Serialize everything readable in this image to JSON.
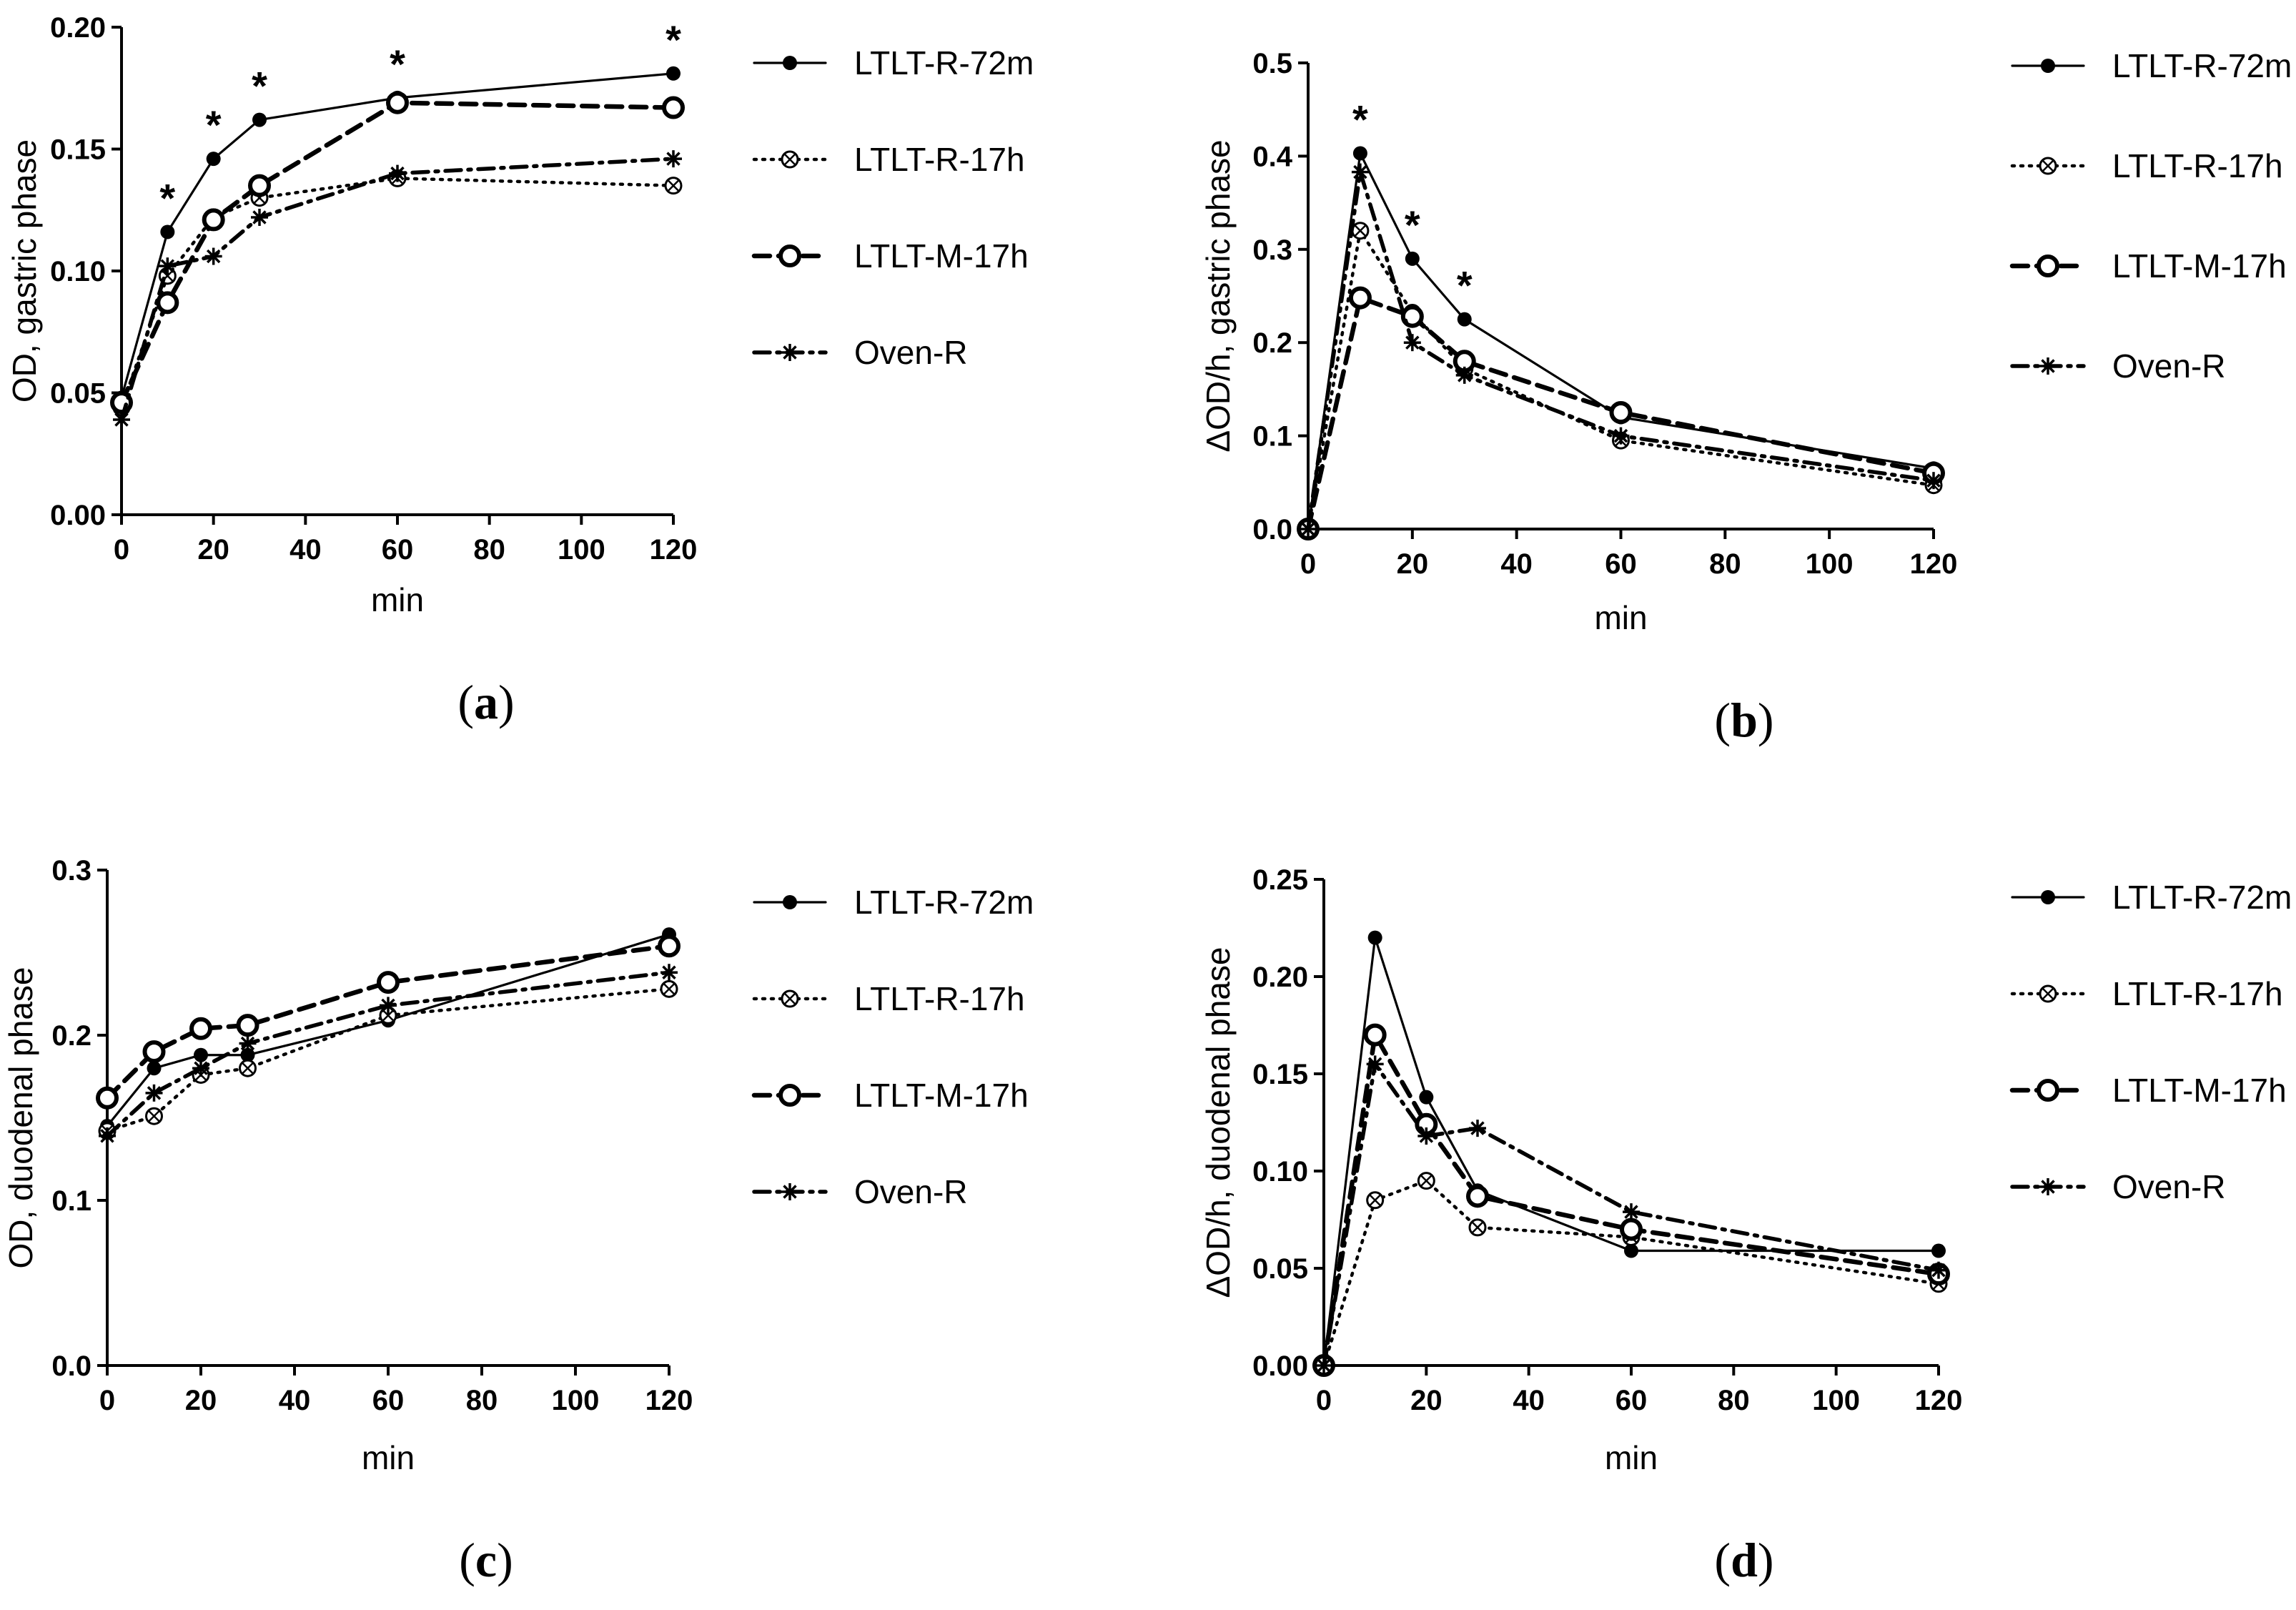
{
  "markers": {
    "LTLT-R-72m": "filled-circle",
    "LTLT-R-17h": "crossed-circle",
    "LTLT-M-17h": "open-circle",
    "Oven-R": "asterisk"
  },
  "chart_data": [
    {
      "panel": "a",
      "panel_label": "a",
      "type": "line",
      "xlabel": "min",
      "ylabel": "OD, gastric phase",
      "xlim": [
        0,
        120
      ],
      "ylim": [
        0,
        0.2
      ],
      "xticks": [
        0,
        20,
        40,
        60,
        80,
        100,
        120
      ],
      "yticks": [
        0,
        0.05,
        0.1,
        0.15,
        0.2
      ],
      "ytick_labels": [
        "0.00",
        "0.05",
        "0.10",
        "0.15",
        "0.20"
      ],
      "x": [
        0,
        10,
        20,
        30,
        60,
        120
      ],
      "series": [
        {
          "name": "LTLT-R-72m",
          "values": [
            0.048,
            0.116,
            0.146,
            0.162,
            0.171,
            0.181
          ]
        },
        {
          "name": "LTLT-R-17h",
          "values": [
            0.044,
            0.098,
            0.122,
            0.13,
            0.138,
            0.135
          ]
        },
        {
          "name": "LTLT-M-17h",
          "values": [
            0.046,
            0.087,
            0.121,
            0.135,
            0.169,
            0.167
          ]
        },
        {
          "name": "Oven-R",
          "values": [
            0.039,
            0.102,
            0.106,
            0.122,
            0.14,
            0.146
          ]
        }
      ],
      "significance": [
        {
          "x": 10,
          "y": 0.116,
          "text": "*"
        },
        {
          "x": 20,
          "y": 0.146,
          "text": "*"
        },
        {
          "x": 30,
          "y": 0.162,
          "text": "*"
        },
        {
          "x": 60,
          "y": 0.171,
          "text": "*"
        },
        {
          "x": 120,
          "y": 0.181,
          "text": "*"
        }
      ],
      "legend": [
        "LTLT-R-72m",
        "LTLT-R-17h",
        "LTLT-M-17h",
        "Oven-R"
      ]
    },
    {
      "panel": "b",
      "panel_label": "b",
      "type": "line",
      "xlabel": "min",
      "ylabel": "ΔOD/h, gastric phase",
      "xlim": [
        0,
        120
      ],
      "ylim": [
        0,
        0.5
      ],
      "xticks": [
        0,
        20,
        40,
        60,
        80,
        100,
        120
      ],
      "yticks": [
        0,
        0.1,
        0.2,
        0.3,
        0.4,
        0.5
      ],
      "ytick_labels": [
        "0.0",
        "0.1",
        "0.2",
        "0.3",
        "0.4",
        "0.5"
      ],
      "x": [
        0,
        10,
        20,
        30,
        60,
        120
      ],
      "series": [
        {
          "name": "LTLT-R-72m",
          "values": [
            0.0,
            0.403,
            0.29,
            0.225,
            0.12,
            0.065
          ]
        },
        {
          "name": "LTLT-R-17h",
          "values": [
            0.0,
            0.32,
            0.232,
            0.172,
            0.095,
            0.047
          ]
        },
        {
          "name": "LTLT-M-17h",
          "values": [
            0.0,
            0.248,
            0.228,
            0.18,
            0.125,
            0.06
          ]
        },
        {
          "name": "Oven-R",
          "values": [
            0.0,
            0.383,
            0.2,
            0.165,
            0.1,
            0.052
          ]
        }
      ],
      "significance": [
        {
          "x": 10,
          "y": 0.403,
          "text": "*"
        },
        {
          "x": 20,
          "y": 0.29,
          "text": "*"
        },
        {
          "x": 30,
          "y": 0.225,
          "text": "*"
        }
      ],
      "legend": [
        "LTLT-R-72m",
        "LTLT-R-17h",
        "LTLT-M-17h",
        "Oven-R"
      ]
    },
    {
      "panel": "c",
      "panel_label": "c",
      "type": "line",
      "xlabel": "min",
      "ylabel": "OD, duodenal phase",
      "xlim": [
        0,
        120
      ],
      "ylim": [
        0,
        0.3
      ],
      "xticks": [
        0,
        20,
        40,
        60,
        80,
        100,
        120
      ],
      "yticks": [
        0,
        0.1,
        0.2,
        0.3
      ],
      "ytick_labels": [
        "0.0",
        "0.1",
        "0.2",
        "0.3"
      ],
      "x": [
        0,
        10,
        20,
        30,
        60,
        120
      ],
      "series": [
        {
          "name": "LTLT-R-72m",
          "values": [
            0.145,
            0.18,
            0.188,
            0.188,
            0.209,
            0.261
          ]
        },
        {
          "name": "LTLT-R-17h",
          "values": [
            0.142,
            0.151,
            0.176,
            0.18,
            0.212,
            0.228
          ]
        },
        {
          "name": "LTLT-M-17h",
          "values": [
            0.162,
            0.19,
            0.204,
            0.206,
            0.232,
            0.254
          ]
        },
        {
          "name": "Oven-R",
          "values": [
            0.139,
            0.165,
            0.18,
            0.195,
            0.218,
            0.238
          ]
        }
      ],
      "significance": [],
      "legend": [
        "LTLT-R-72m",
        "LTLT-R-17h",
        "LTLT-M-17h",
        "Oven-R"
      ]
    },
    {
      "panel": "d",
      "panel_label": "d",
      "type": "line",
      "xlabel": "min",
      "ylabel": "ΔOD/h, duodenal phase",
      "xlim": [
        0,
        120
      ],
      "ylim": [
        0,
        0.25
      ],
      "xticks": [
        0,
        20,
        40,
        60,
        80,
        100,
        120
      ],
      "yticks": [
        0,
        0.05,
        0.1,
        0.15,
        0.2,
        0.25
      ],
      "ytick_labels": [
        "0.00",
        "0.05",
        "0.10",
        "0.15",
        "0.20",
        "0.25"
      ],
      "x": [
        0,
        10,
        20,
        30,
        60,
        120
      ],
      "series": [
        {
          "name": "LTLT-R-72m",
          "values": [
            0.0,
            0.22,
            0.138,
            0.09,
            0.059,
            0.059
          ]
        },
        {
          "name": "LTLT-R-17h",
          "values": [
            0.0,
            0.085,
            0.095,
            0.071,
            0.066,
            0.042
          ]
        },
        {
          "name": "LTLT-M-17h",
          "values": [
            0.0,
            0.17,
            0.124,
            0.087,
            0.07,
            0.047
          ]
        },
        {
          "name": "Oven-R",
          "values": [
            0.0,
            0.155,
            0.118,
            0.122,
            0.079,
            0.049
          ]
        }
      ],
      "significance": [],
      "legend": [
        "LTLT-R-72m",
        "LTLT-R-17h",
        "LTLT-M-17h",
        "Oven-R"
      ]
    }
  ]
}
